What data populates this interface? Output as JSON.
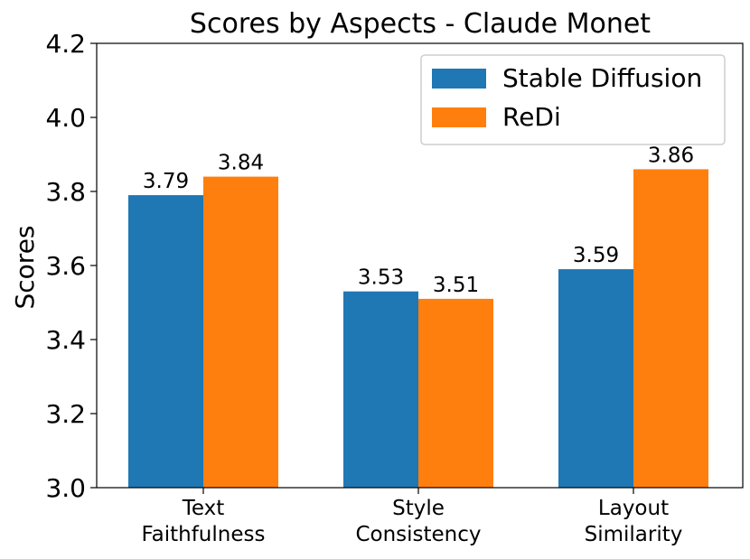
{
  "chart_data": {
    "type": "bar",
    "title": "Scores by Aspects - Claude Monet",
    "xlabel": "",
    "ylabel": "Scores",
    "ylim": [
      3.0,
      4.2
    ],
    "yticks": [
      "3.0",
      "3.2",
      "3.4",
      "3.6",
      "3.8",
      "4.0",
      "4.2"
    ],
    "categories": [
      [
        "Text",
        "Faithfulness"
      ],
      [
        "Style",
        "Consistency"
      ],
      [
        "Layout",
        "Similarity"
      ]
    ],
    "series": [
      {
        "name": "Stable Diffusion",
        "color": "#1f77b4",
        "values": [
          3.79,
          3.53,
          3.59
        ],
        "labels": [
          "3.79",
          "3.53",
          "3.59"
        ]
      },
      {
        "name": "ReDi",
        "color": "#ff7f0e",
        "values": [
          3.84,
          3.51,
          3.86
        ],
        "labels": [
          "3.84",
          "3.51",
          "3.86"
        ]
      }
    ],
    "legend": "top-right",
    "grid": false
  }
}
